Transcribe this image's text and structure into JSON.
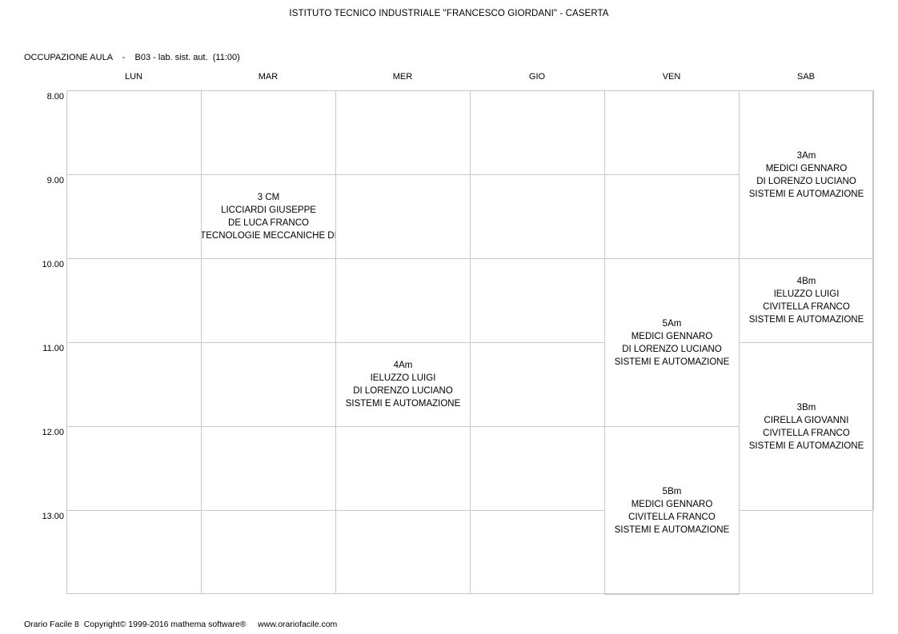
{
  "header": {
    "title": "ISTITUTO TECNICO INDUSTRIALE \"FRANCESCO GIORDANI\" - CASERTA",
    "room_label": "OCCUPAZIONE AULA    -    B03 - lab. sist. aut.  (11:00)"
  },
  "days": [
    "LUN",
    "MAR",
    "MER",
    "GIO",
    "VEN",
    "SAB"
  ],
  "times": [
    "8.00",
    "9.00",
    "10.00",
    "11.00",
    "12.00",
    "13.00"
  ],
  "lessons": [
    {
      "day": 1,
      "start": 1,
      "span": 1,
      "lines": [
        "3 CM",
        "LICCIARDI GIUSEPPE",
        "DE LUCA FRANCO",
        "TECNOLOGIE MECCANICHE DI"
      ]
    },
    {
      "day": 5,
      "start": 0,
      "span": 2,
      "lines": [
        "3Am",
        "MEDICI GENNARO",
        "DI LORENZO LUCIANO",
        "SISTEMI E AUTOMAZIONE"
      ]
    },
    {
      "day": 5,
      "start": 2,
      "span": 1,
      "lines": [
        "4Bm",
        "IELUZZO LUIGI",
        "CIVITELLA FRANCO",
        "SISTEMI E AUTOMAZIONE"
      ]
    },
    {
      "day": 4,
      "start": 2,
      "span": 2,
      "lines": [
        "5Am",
        "MEDICI GENNARO",
        "DI LORENZO LUCIANO",
        "SISTEMI E AUTOMAZIONE"
      ]
    },
    {
      "day": 2,
      "start": 3,
      "span": 1,
      "lines": [
        "4Am",
        "IELUZZO LUIGI",
        "DI LORENZO LUCIANO",
        "SISTEMI E AUTOMAZIONE"
      ]
    },
    {
      "day": 5,
      "start": 3,
      "span": 2,
      "lines": [
        "3Bm",
        "CIRELLA  GIOVANNI",
        "CIVITELLA FRANCO",
        "SISTEMI E AUTOMAZIONE"
      ]
    },
    {
      "day": 4,
      "start": 4,
      "span": 2,
      "lines": [
        "5Bm",
        "MEDICI GENNARO",
        "CIVITELLA FRANCO",
        "SISTEMI E AUTOMAZIONE"
      ]
    }
  ],
  "footer": {
    "text": "Orario Facile 8  Copyright© 1999-2016 mathema software®     www.orariofacile.com"
  },
  "colors": {
    "grid_line": "#c8c8c8",
    "text": "#000000",
    "background": "#ffffff"
  }
}
